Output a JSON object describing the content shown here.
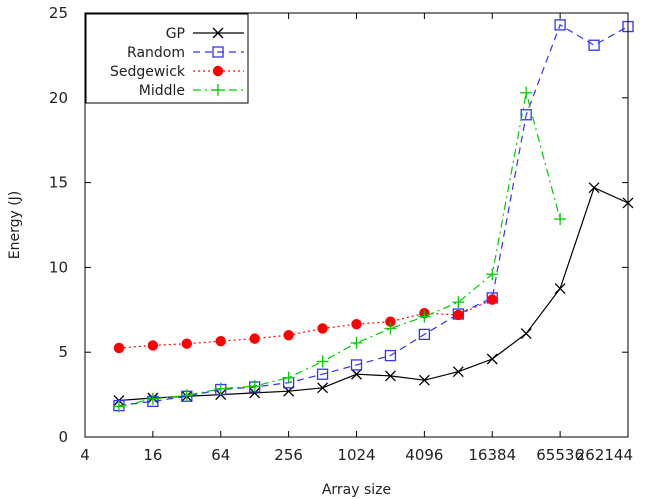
{
  "chart_data": {
    "type": "line",
    "xlabel": "Array size",
    "ylabel": "Energy (J)",
    "xscale": "log2",
    "xlim": [
      4,
      262144
    ],
    "ylim": [
      0,
      25
    ],
    "xticks": [
      4,
      16,
      64,
      256,
      1024,
      4096,
      16384,
      65536,
      262144
    ],
    "xtick_labels": [
      "4",
      "16",
      "64",
      "256",
      "1024",
      "4096",
      "16384",
      "65536",
      "262144"
    ],
    "yticks": [
      0,
      5,
      10,
      15,
      20,
      25
    ],
    "ytick_labels": [
      "0",
      "5",
      "10",
      "15",
      "20",
      "25"
    ],
    "legend_position": "top-left",
    "grid": false,
    "series": [
      {
        "name": "GP",
        "color": "#000000",
        "marker": "x",
        "line": "solid",
        "x": [
          8,
          16,
          32,
          64,
          128,
          256,
          512,
          1024,
          2048,
          4096,
          8192,
          16384,
          32768,
          65536,
          131072,
          262144
        ],
        "y": [
          2.15,
          2.3,
          2.4,
          2.5,
          2.6,
          2.7,
          2.9,
          3.7,
          3.6,
          3.35,
          3.85,
          4.6,
          6.1,
          8.75,
          14.7,
          13.8
        ]
      },
      {
        "name": "Random",
        "color": "#3333ff",
        "marker": "square",
        "line": "dashed",
        "x": [
          8,
          16,
          32,
          64,
          128,
          256,
          512,
          1024,
          2048,
          4096,
          8192,
          16384,
          32768,
          65536,
          131072,
          262144
        ],
        "y": [
          1.85,
          2.1,
          2.4,
          2.8,
          2.95,
          3.2,
          3.7,
          4.25,
          4.8,
          6.05,
          7.25,
          8.2,
          19.0,
          24.3,
          23.1,
          24.2
        ]
      },
      {
        "name": "Sedgewick",
        "color": "#ff0000",
        "marker": "circle",
        "line": "dotted",
        "x": [
          8,
          16,
          32,
          64,
          128,
          256,
          512,
          1024,
          2048,
          4096,
          8192,
          16384
        ],
        "y": [
          5.25,
          5.4,
          5.5,
          5.65,
          5.8,
          6.0,
          6.4,
          6.65,
          6.8,
          7.3,
          7.2,
          8.1
        ]
      },
      {
        "name": "Middle",
        "color": "#00cc00",
        "marker": "plus",
        "line": "dashdot",
        "x": [
          8,
          16,
          32,
          64,
          128,
          256,
          512,
          1024,
          2048,
          4096,
          8192,
          16384,
          32768,
          65536
        ],
        "y": [
          1.8,
          2.25,
          2.45,
          2.85,
          3.0,
          3.5,
          4.45,
          5.55,
          6.4,
          7.1,
          7.95,
          9.6,
          20.3,
          12.85
        ]
      }
    ]
  }
}
